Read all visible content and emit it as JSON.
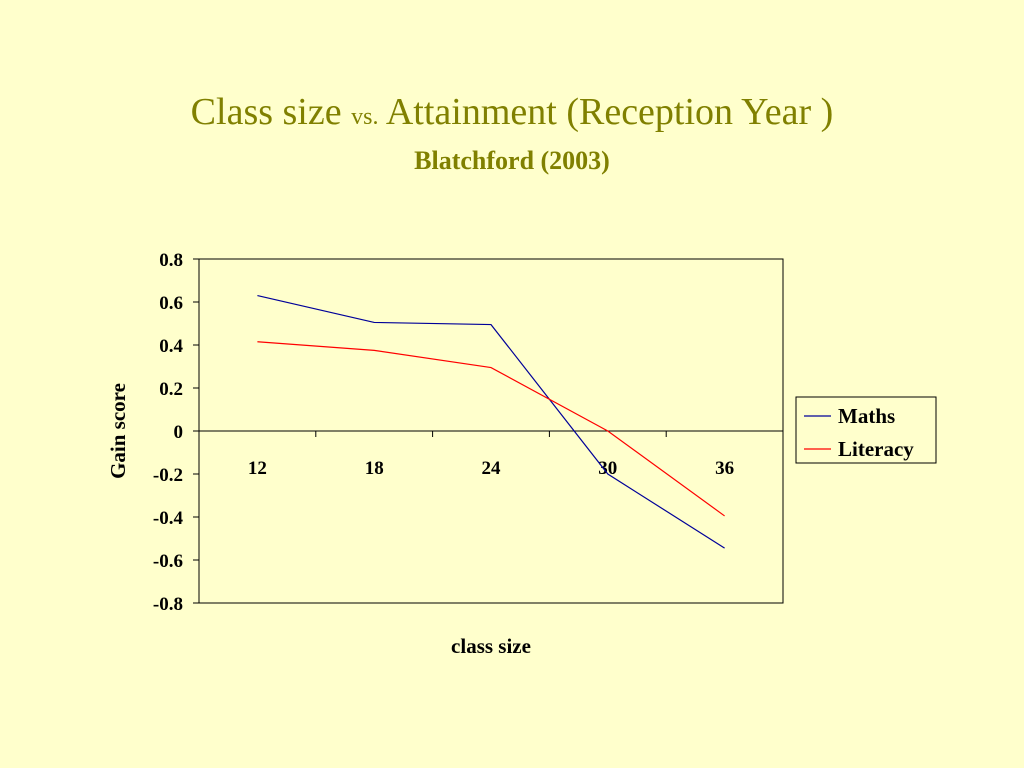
{
  "slide": {
    "title_main": "Class size",
    "title_vs": "vs.",
    "title_rest": "Attainment  (Reception Year )",
    "subtitle": "Blatchford (2003)"
  },
  "colors": {
    "background": "#FFFFCC",
    "title": "#808000",
    "maths": "#000099",
    "literacy": "#FF0000"
  },
  "chart_data": {
    "type": "line",
    "categories": [
      "12",
      "18",
      "24",
      "30",
      "36"
    ],
    "series": [
      {
        "name": "Maths",
        "values": [
          0.63,
          0.505,
          0.495,
          -0.2,
          -0.545
        ]
      },
      {
        "name": "Literacy",
        "values": [
          0.415,
          0.375,
          0.295,
          0.0,
          -0.395
        ]
      }
    ],
    "xlabel": "class size",
    "ylabel": "Gain score",
    "ylim": [
      -0.8,
      0.8
    ],
    "yticks": [
      "0.8",
      "0.6",
      "0.4",
      "0.2",
      "0",
      "-0.2",
      "-0.4",
      "-0.6",
      "-0.8"
    ],
    "grid": false,
    "legend_position": "right"
  }
}
